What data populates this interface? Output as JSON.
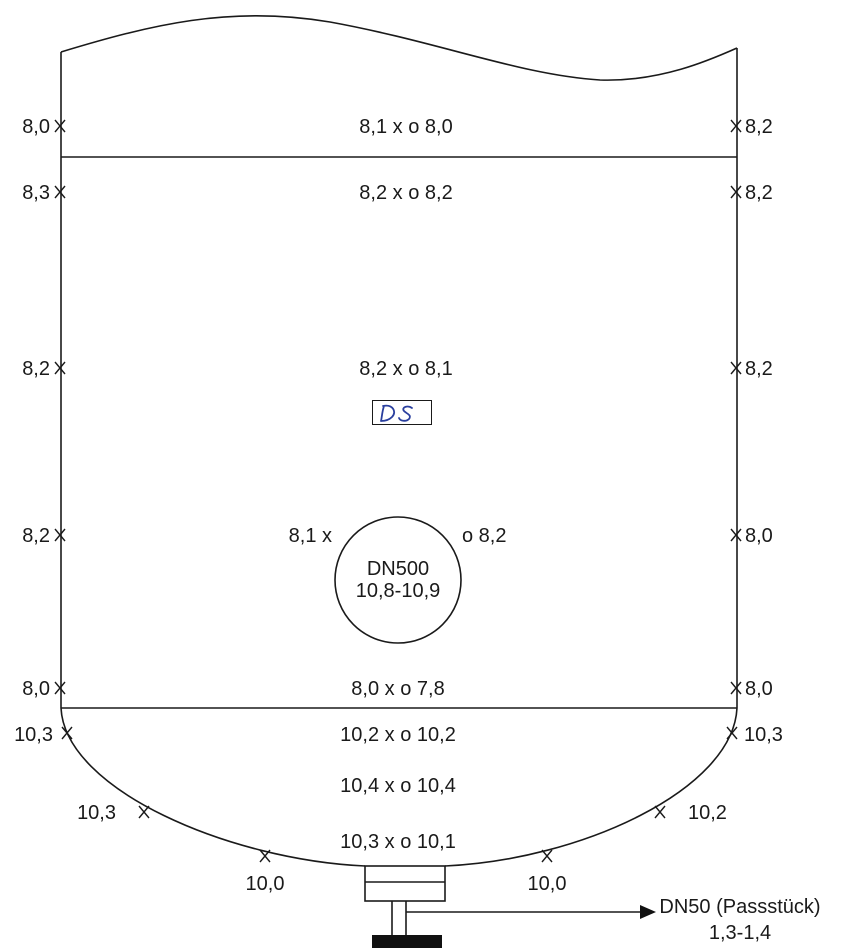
{
  "shell_top": {
    "left": "8,0",
    "center": "8,1 x o 8,0",
    "right": "8,2"
  },
  "shell_rows": [
    {
      "left": "8,3",
      "center": "8,2 x o 8,2",
      "right": "8,2"
    },
    {
      "left": "8,2",
      "center": "8,2 x o 8,1",
      "right": "8,2"
    },
    {
      "left": "8,2",
      "center_left": "8,1 x",
      "center_right": "o 8,2",
      "right": "8,0"
    },
    {
      "left": "8,0",
      "center": "8,0 x o 7,8",
      "right": "8,0"
    }
  ],
  "manhole": {
    "name": "DN500",
    "value": "10,8-10,9"
  },
  "stamp": {
    "initials": "DS"
  },
  "bottom_head": {
    "left_edge": "10,3",
    "right_edge": "10,3",
    "row1": "10,2 x o 10,2",
    "row2": "10,4 x o 10,4",
    "row3": "10,3 x o 10,1",
    "left_mid": "10,3",
    "right_mid": "10,2",
    "left_low": "10,0",
    "right_low": "10,0"
  },
  "nozzle": {
    "name": "DN50 (Passstück)",
    "value": "1,3-1,4"
  }
}
